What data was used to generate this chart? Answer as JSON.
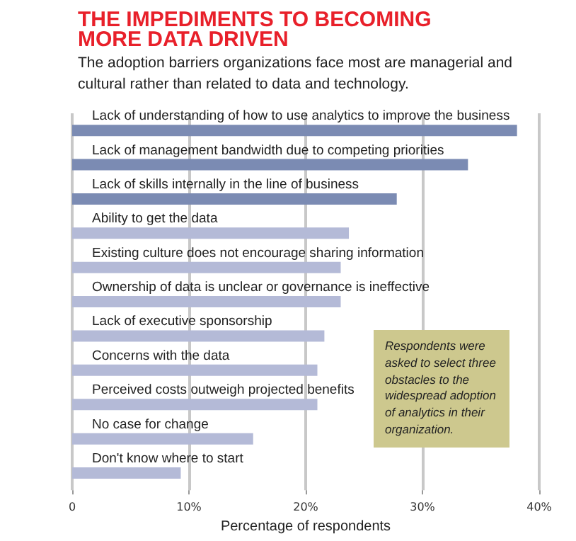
{
  "chart_data": {
    "type": "bar",
    "orientation": "horizontal",
    "title": "THE IMPEDIMENTS TO BECOMING\nMORE DATA DRIVEN",
    "subtitle": "The adoption barriers organizations face most are managerial and\ncultural rather than related to data and technology.",
    "xlabel": "Percentage of respondents",
    "categories": [
      "Lack of understanding of how to use analytics to improve the business",
      "Lack of management bandwidth due to competing priorities",
      "Lack of skills internally in the line of business",
      "Ability to get the data",
      "Existing culture does not encourage sharing information",
      "Ownership of data is unclear or governance is ineffective",
      "Lack of executive sponsorship",
      "Concerns with the data",
      "Perceived costs outweigh projected benefits",
      "No case for change",
      "Don't know where to start"
    ],
    "values": [
      38.1,
      33.9,
      27.8,
      23.7,
      23.0,
      23.0,
      21.6,
      21.0,
      21.0,
      15.5,
      9.3
    ],
    "colors": [
      "#7b8bb3",
      "#7b8bb3",
      "#7b8bb3",
      "#b4bad7",
      "#b4bad7",
      "#b4bad7",
      "#b4bad7",
      "#b4bad7",
      "#b4bad7",
      "#b4bad7",
      "#b4bad7"
    ],
    "xlim": [
      0,
      40
    ],
    "xticks": [
      0,
      {
        "value": 10,
        "label": "10%"
      },
      {
        "value": 20,
        "label": "20%"
      },
      {
        "value": 30,
        "label": "30%"
      },
      {
        "value": 40,
        "label": "40%"
      }
    ],
    "grid": "x",
    "annotations": [
      "Respondents were asked to select three obstacles to the widespread adoption of analytics in their organization."
    ]
  }
}
